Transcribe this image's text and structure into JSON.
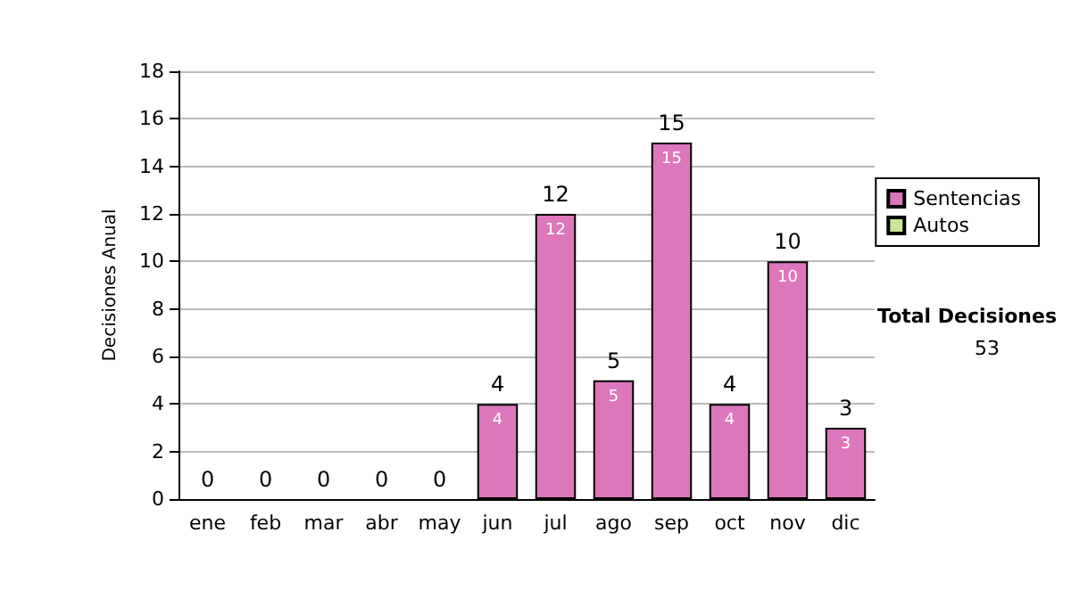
{
  "chart_data": {
    "type": "bar",
    "ylabel": "Decisiones Anual",
    "categories": [
      "ene",
      "feb",
      "mar",
      "abr",
      "may",
      "jun",
      "jul",
      "ago",
      "sep",
      "oct",
      "nov",
      "dic"
    ],
    "stacked": true,
    "series": [
      {
        "name": "Sentencias",
        "color": "#dd77bb",
        "values": [
          0,
          0,
          0,
          0,
          0,
          4,
          12,
          5,
          15,
          4,
          10,
          3
        ],
        "value_labels": [
          null,
          null,
          null,
          null,
          null,
          "4",
          "12",
          "5",
          "15",
          "4",
          "10",
          "3"
        ]
      },
      {
        "name": "Autos",
        "color": "#cce699",
        "values": [
          0,
          0,
          0,
          0,
          0,
          0,
          0,
          0,
          0,
          0,
          0,
          0
        ]
      }
    ],
    "totals": [
      "0",
      "0",
      "0",
      "0",
      "0",
      "4",
      "12",
      "5",
      "15",
      "4",
      "10",
      "3"
    ],
    "ylim": [
      0,
      18
    ],
    "yticks": [
      0,
      2,
      4,
      6,
      8,
      10,
      12,
      14,
      16,
      18
    ],
    "grid": "y",
    "legend": "right",
    "annotations": [
      "Total Decisiones",
      "53"
    ]
  }
}
